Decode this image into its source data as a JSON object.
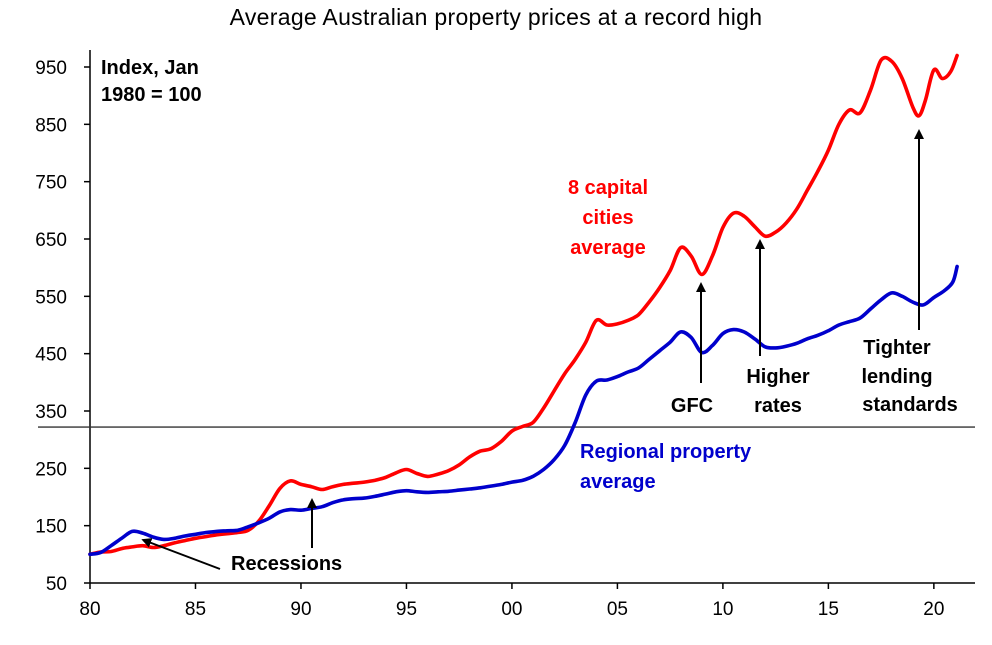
{
  "chart_data": {
    "type": "line",
    "title": "Average Australian property prices at a record high",
    "xlabel": "",
    "ylabel": "",
    "index_note": [
      "Index, Jan",
      "1980 = 100"
    ],
    "xlim": [
      1980,
      2022
    ],
    "ylim": [
      50,
      1000
    ],
    "x_ticks": [
      1980,
      1985,
      1990,
      1995,
      2000,
      2005,
      2010,
      2015,
      2020
    ],
    "x_tick_labels": [
      "80",
      "85",
      "90",
      "95",
      "00",
      "05",
      "10",
      "15",
      "20"
    ],
    "y_ticks": [
      50,
      150,
      250,
      350,
      450,
      550,
      650,
      750,
      850,
      950
    ],
    "y_tick_labels": [
      "50",
      "150",
      "250",
      "350",
      "450",
      "550",
      "650",
      "750",
      "850",
      "950"
    ],
    "grid": false,
    "reference_line": {
      "y": 322
    },
    "series": [
      {
        "name": "8 capital cities average",
        "color": "#ff0000",
        "points": [
          [
            1980.0,
            100
          ],
          [
            1980.5,
            104
          ],
          [
            1981.0,
            105
          ],
          [
            1981.5,
            110
          ],
          [
            1982.0,
            113
          ],
          [
            1982.5,
            115
          ],
          [
            1983.0,
            112
          ],
          [
            1983.5,
            115
          ],
          [
            1984.0,
            120
          ],
          [
            1984.5,
            124
          ],
          [
            1985.0,
            128
          ],
          [
            1985.5,
            131
          ],
          [
            1986.0,
            134
          ],
          [
            1986.5,
            136
          ],
          [
            1987.0,
            138
          ],
          [
            1987.5,
            142
          ],
          [
            1988.0,
            158
          ],
          [
            1988.5,
            185
          ],
          [
            1989.0,
            215
          ],
          [
            1989.5,
            228
          ],
          [
            1990.0,
            222
          ],
          [
            1990.5,
            218
          ],
          [
            1991.0,
            213
          ],
          [
            1991.5,
            218
          ],
          [
            1992.0,
            222
          ],
          [
            1992.5,
            224
          ],
          [
            1993.0,
            226
          ],
          [
            1993.5,
            229
          ],
          [
            1994.0,
            234
          ],
          [
            1994.5,
            242
          ],
          [
            1995.0,
            248
          ],
          [
            1995.5,
            241
          ],
          [
            1996.0,
            236
          ],
          [
            1996.5,
            240
          ],
          [
            1997.0,
            246
          ],
          [
            1997.5,
            256
          ],
          [
            1998.0,
            270
          ],
          [
            1998.5,
            280
          ],
          [
            1999.0,
            284
          ],
          [
            1999.5,
            297
          ],
          [
            2000.0,
            315
          ],
          [
            2000.5,
            323
          ],
          [
            2001.0,
            330
          ],
          [
            2001.5,
            355
          ],
          [
            2002.0,
            385
          ],
          [
            2002.5,
            415
          ],
          [
            2003.0,
            440
          ],
          [
            2003.5,
            470
          ],
          [
            2004.0,
            508
          ],
          [
            2004.5,
            500
          ],
          [
            2005.0,
            502
          ],
          [
            2005.5,
            508
          ],
          [
            2006.0,
            518
          ],
          [
            2006.5,
            540
          ],
          [
            2007.0,
            565
          ],
          [
            2007.5,
            595
          ],
          [
            2008.0,
            635
          ],
          [
            2008.5,
            620
          ],
          [
            2009.0,
            588
          ],
          [
            2009.5,
            620
          ],
          [
            2010.0,
            670
          ],
          [
            2010.5,
            695
          ],
          [
            2011.0,
            690
          ],
          [
            2011.5,
            672
          ],
          [
            2012.0,
            655
          ],
          [
            2012.5,
            662
          ],
          [
            2013.0,
            678
          ],
          [
            2013.5,
            702
          ],
          [
            2014.0,
            735
          ],
          [
            2014.5,
            768
          ],
          [
            2015.0,
            805
          ],
          [
            2015.5,
            850
          ],
          [
            2016.0,
            875
          ],
          [
            2016.5,
            870
          ],
          [
            2017.0,
            910
          ],
          [
            2017.5,
            962
          ],
          [
            2018.0,
            960
          ],
          [
            2018.5,
            930
          ],
          [
            2019.0,
            880
          ],
          [
            2019.3,
            865
          ],
          [
            2019.6,
            892
          ],
          [
            2020.0,
            945
          ],
          [
            2020.4,
            930
          ],
          [
            2020.8,
            942
          ],
          [
            2021.1,
            970
          ]
        ]
      },
      {
        "name": "Regional property average",
        "color": "#0000cc",
        "points": [
          [
            1980.0,
            100
          ],
          [
            1980.5,
            103
          ],
          [
            1981.0,
            115
          ],
          [
            1981.5,
            128
          ],
          [
            1982.0,
            140
          ],
          [
            1982.5,
            137
          ],
          [
            1983.0,
            130
          ],
          [
            1983.5,
            126
          ],
          [
            1984.0,
            128
          ],
          [
            1984.5,
            132
          ],
          [
            1985.0,
            135
          ],
          [
            1985.5,
            138
          ],
          [
            1986.0,
            140
          ],
          [
            1986.5,
            141
          ],
          [
            1987.0,
            142
          ],
          [
            1987.5,
            148
          ],
          [
            1988.0,
            155
          ],
          [
            1988.5,
            163
          ],
          [
            1989.0,
            174
          ],
          [
            1989.5,
            178
          ],
          [
            1990.0,
            177
          ],
          [
            1990.5,
            180
          ],
          [
            1991.0,
            183
          ],
          [
            1991.5,
            190
          ],
          [
            1992.0,
            195
          ],
          [
            1992.5,
            197
          ],
          [
            1993.0,
            198
          ],
          [
            1993.5,
            201
          ],
          [
            1994.0,
            205
          ],
          [
            1994.5,
            209
          ],
          [
            1995.0,
            211
          ],
          [
            1995.5,
            209
          ],
          [
            1996.0,
            208
          ],
          [
            1996.5,
            209
          ],
          [
            1997.0,
            210
          ],
          [
            1997.5,
            212
          ],
          [
            1998.0,
            214
          ],
          [
            1998.5,
            216
          ],
          [
            1999.0,
            219
          ],
          [
            1999.5,
            222
          ],
          [
            2000.0,
            226
          ],
          [
            2000.5,
            229
          ],
          [
            2001.0,
            236
          ],
          [
            2001.5,
            248
          ],
          [
            2002.0,
            265
          ],
          [
            2002.5,
            290
          ],
          [
            2003.0,
            330
          ],
          [
            2003.5,
            378
          ],
          [
            2004.0,
            402
          ],
          [
            2004.5,
            404
          ],
          [
            2005.0,
            410
          ],
          [
            2005.5,
            418
          ],
          [
            2006.0,
            425
          ],
          [
            2006.5,
            440
          ],
          [
            2007.0,
            455
          ],
          [
            2007.5,
            470
          ],
          [
            2008.0,
            488
          ],
          [
            2008.5,
            478
          ],
          [
            2009.0,
            452
          ],
          [
            2009.5,
            464
          ],
          [
            2010.0,
            485
          ],
          [
            2010.5,
            492
          ],
          [
            2011.0,
            488
          ],
          [
            2011.5,
            476
          ],
          [
            2012.0,
            462
          ],
          [
            2012.5,
            460
          ],
          [
            2013.0,
            463
          ],
          [
            2013.5,
            468
          ],
          [
            2014.0,
            476
          ],
          [
            2014.5,
            482
          ],
          [
            2015.0,
            490
          ],
          [
            2015.5,
            500
          ],
          [
            2016.0,
            506
          ],
          [
            2016.5,
            512
          ],
          [
            2017.0,
            528
          ],
          [
            2017.5,
            544
          ],
          [
            2018.0,
            556
          ],
          [
            2018.5,
            550
          ],
          [
            2019.0,
            540
          ],
          [
            2019.5,
            535
          ],
          [
            2020.0,
            548
          ],
          [
            2020.5,
            560
          ],
          [
            2020.9,
            575
          ],
          [
            2021.1,
            602
          ]
        ]
      }
    ],
    "annotations": {
      "capital_label": {
        "lines": [
          "8 capital",
          "cities",
          "average"
        ],
        "color": "#ff0000"
      },
      "regional_label": {
        "lines": [
          "Regional property",
          "average"
        ],
        "color": "#0000cc"
      },
      "recessions": {
        "text": "Recessions",
        "color": "#000000"
      },
      "gfc": {
        "text": "GFC",
        "color": "#000000"
      },
      "higher_rates": {
        "lines": [
          "Higher",
          "rates"
        ],
        "color": "#000000"
      },
      "tighter": {
        "lines": [
          "Tighter",
          "lending",
          "standards"
        ],
        "color": "#000000"
      }
    }
  }
}
